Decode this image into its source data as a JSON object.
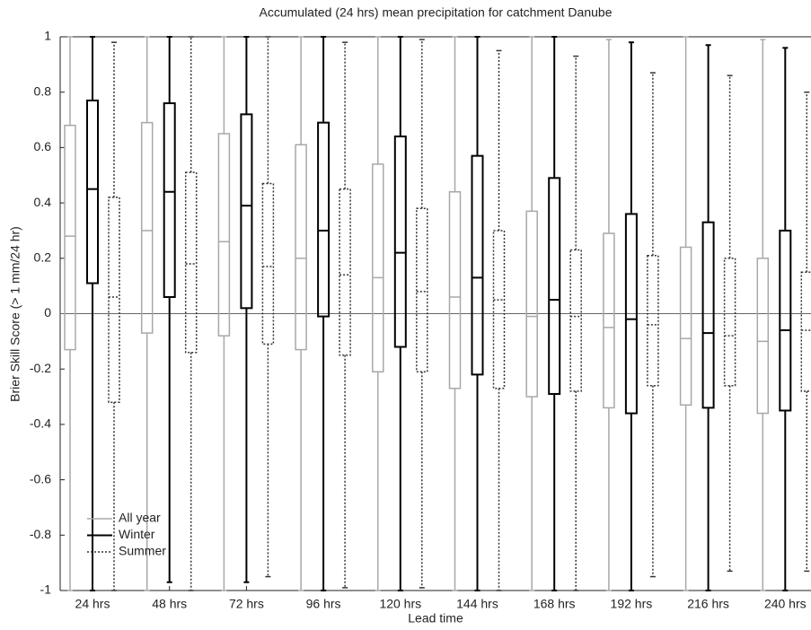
{
  "chart_data": {
    "type": "box",
    "title": "Accumulated (24 hrs) mean precipitation for catchment Danube",
    "x_label": "Lead time",
    "y_label": "Brier Skill Score (> 1 mm/24 hr)",
    "categories": [
      "24 hrs",
      "48 hrs",
      "72 hrs",
      "96 hrs",
      "120 hrs",
      "144 hrs",
      "168 hrs",
      "192 hrs",
      "216 hrs",
      "240 hrs"
    ],
    "ylim": [
      -1,
      1
    ],
    "yticks": [
      -1,
      -0.8,
      -0.6,
      -0.4,
      -0.2,
      0,
      0.2,
      0.4,
      0.6,
      0.8,
      1
    ],
    "legend": "lower left",
    "series": [
      {
        "name": "All year",
        "color": "#a8a8a8",
        "linestyle": "solid",
        "values": [
          {
            "min": -1,
            "q1": -0.13,
            "median": 0.28,
            "q3": 0.68,
            "max": 1
          },
          {
            "min": -1,
            "q1": -0.07,
            "median": 0.3,
            "q3": 0.69,
            "max": 1
          },
          {
            "min": -1,
            "q1": -0.08,
            "median": 0.26,
            "q3": 0.65,
            "max": 1
          },
          {
            "min": -1,
            "q1": -0.13,
            "median": 0.2,
            "q3": 0.61,
            "max": 1
          },
          {
            "min": -1,
            "q1": -0.21,
            "median": 0.13,
            "q3": 0.54,
            "max": 1
          },
          {
            "min": -1,
            "q1": -0.27,
            "median": 0.06,
            "q3": 0.44,
            "max": 1
          },
          {
            "min": -1,
            "q1": -0.3,
            "median": -0.01,
            "q3": 0.37,
            "max": 1
          },
          {
            "min": -1,
            "q1": -0.34,
            "median": -0.05,
            "q3": 0.29,
            "max": 0.99
          },
          {
            "min": -1,
            "q1": -0.33,
            "median": -0.09,
            "q3": 0.24,
            "max": 1
          },
          {
            "min": -1,
            "q1": -0.36,
            "median": -0.1,
            "q3": 0.2,
            "max": 0.99
          }
        ]
      },
      {
        "name": "Winter",
        "color": "#000000",
        "linestyle": "solid",
        "values": [
          {
            "min": -1,
            "q1": 0.11,
            "median": 0.45,
            "q3": 0.77,
            "max": 1
          },
          {
            "min": -0.97,
            "q1": 0.06,
            "median": 0.44,
            "q3": 0.76,
            "max": 1
          },
          {
            "min": -0.97,
            "q1": 0.02,
            "median": 0.39,
            "q3": 0.72,
            "max": 1
          },
          {
            "min": -1,
            "q1": -0.01,
            "median": 0.3,
            "q3": 0.69,
            "max": 1
          },
          {
            "min": -1,
            "q1": -0.12,
            "median": 0.22,
            "q3": 0.64,
            "max": 1
          },
          {
            "min": -1,
            "q1": -0.22,
            "median": 0.13,
            "q3": 0.57,
            "max": 1
          },
          {
            "min": -1,
            "q1": -0.29,
            "median": 0.05,
            "q3": 0.49,
            "max": 1
          },
          {
            "min": -1,
            "q1": -0.36,
            "median": -0.02,
            "q3": 0.36,
            "max": 0.98
          },
          {
            "min": -1,
            "q1": -0.34,
            "median": -0.07,
            "q3": 0.33,
            "max": 0.97
          },
          {
            "min": -1,
            "q1": -0.35,
            "median": -0.06,
            "q3": 0.3,
            "max": 0.96
          }
        ]
      },
      {
        "name": "Summer",
        "color": "#333333",
        "linestyle": "dotted",
        "values": [
          {
            "min": -1,
            "q1": -0.32,
            "median": 0.06,
            "q3": 0.42,
            "max": 0.98
          },
          {
            "min": -1,
            "q1": -0.14,
            "median": 0.18,
            "q3": 0.51,
            "max": 1
          },
          {
            "min": -0.95,
            "q1": -0.11,
            "median": 0.17,
            "q3": 0.47,
            "max": 1
          },
          {
            "min": -0.99,
            "q1": -0.15,
            "median": 0.14,
            "q3": 0.45,
            "max": 0.98
          },
          {
            "min": -0.99,
            "q1": -0.21,
            "median": 0.08,
            "q3": 0.38,
            "max": 0.99
          },
          {
            "min": -1,
            "q1": -0.27,
            "median": 0.05,
            "q3": 0.3,
            "max": 0.95
          },
          {
            "min": -1,
            "q1": -0.28,
            "median": -0.01,
            "q3": 0.23,
            "max": 0.93
          },
          {
            "min": -0.95,
            "q1": -0.26,
            "median": -0.04,
            "q3": 0.21,
            "max": 0.87
          },
          {
            "min": -0.93,
            "q1": -0.26,
            "median": -0.08,
            "q3": 0.2,
            "max": 0.86
          },
          {
            "min": -0.93,
            "q1": -0.28,
            "median": -0.06,
            "q3": 0.15,
            "max": 0.8
          }
        ]
      }
    ]
  }
}
